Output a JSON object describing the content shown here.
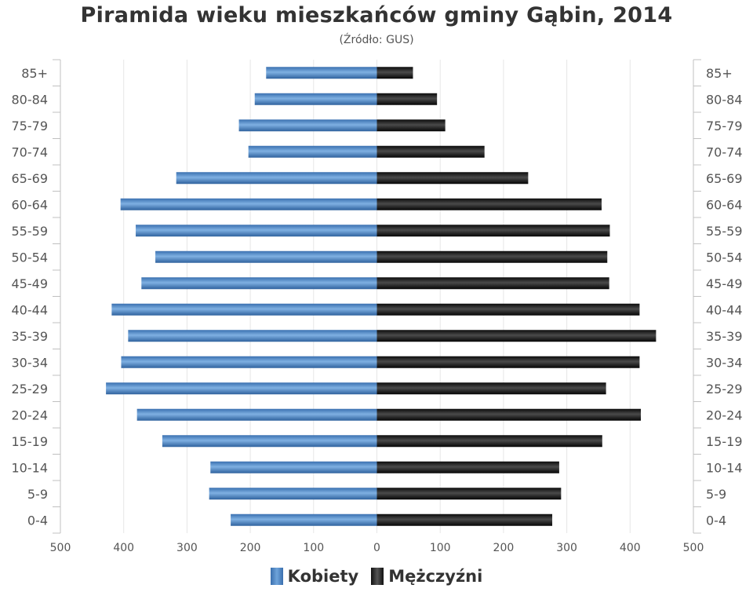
{
  "chart_data": {
    "type": "bar",
    "orientation": "horizontal-pyramid",
    "title": "Piramida wieku mieszkańców gminy Gąbin, 2014",
    "subtitle": "(Źródło: GUS)",
    "categories": [
      "85+",
      "80-84",
      "75-79",
      "70-74",
      "65-69",
      "60-64",
      "55-59",
      "50-54",
      "45-49",
      "40-44",
      "35-39",
      "30-34",
      "25-29",
      "20-24",
      "15-19",
      "10-14",
      "5-9",
      "0-4"
    ],
    "series": [
      {
        "name": "Kobiety",
        "color": "#4a86c8",
        "values": [
          175,
          193,
          218,
          203,
          317,
          405,
          381,
          350,
          372,
          419,
          393,
          404,
          428,
          379,
          339,
          263,
          265,
          231
        ]
      },
      {
        "name": "Mężczyźni",
        "color": "#1a1a1a",
        "values": [
          57,
          95,
          108,
          170,
          239,
          355,
          368,
          364,
          367,
          415,
          441,
          415,
          362,
          417,
          356,
          288,
          291,
          277
        ]
      }
    ],
    "xlim": [
      -500,
      500
    ],
    "x_ticks": [
      "500",
      "400",
      "300",
      "200",
      "100",
      "0",
      "100",
      "200",
      "300",
      "400",
      "500"
    ],
    "grid": true,
    "legend_position": "bottom"
  }
}
